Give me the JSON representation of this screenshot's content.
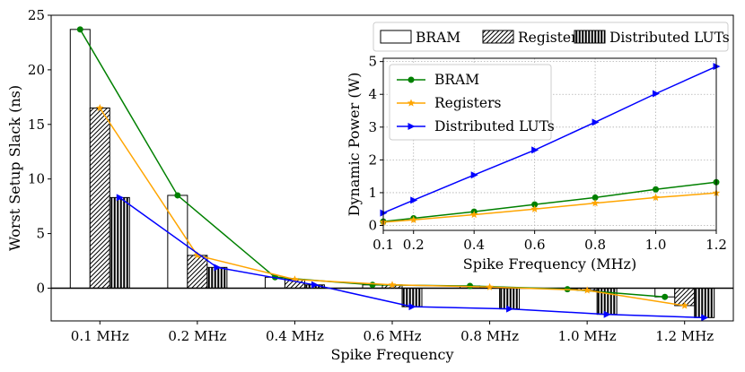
{
  "chart_data": [
    {
      "type": "bar",
      "title": "",
      "xlabel": "Spike Frequency",
      "ylabel": "Worst Setup Slack (ns)",
      "ylim": [
        -3,
        25
      ],
      "yticks": [
        0,
        5,
        10,
        15,
        20,
        25
      ],
      "categories": [
        "0.1 MHz",
        "0.2 MHz",
        "0.4 MHz",
        "0.6 MHz",
        "0.8 MHz",
        "1.0 MHz",
        "1.2 MHz"
      ],
      "legend_position": "top-right",
      "series": [
        {
          "name": "BRAM",
          "values": [
            23.7,
            8.5,
            1.0,
            0.3,
            0.2,
            -0.1,
            -0.8
          ],
          "color": "#008000",
          "hatch": "none"
        },
        {
          "name": "Registers",
          "values": [
            16.5,
            3.0,
            0.8,
            0.3,
            0.1,
            -0.2,
            -1.6
          ],
          "color": "#FFA500",
          "hatch": "diagonal"
        },
        {
          "name": "Distributed LUTs",
          "values": [
            8.3,
            1.9,
            0.3,
            -1.7,
            -1.9,
            -2.4,
            -2.7
          ],
          "color": "#0000FF",
          "hatch": "vertical"
        }
      ]
    },
    {
      "type": "line",
      "title": "",
      "xlabel": "Spike Frequency (MHz)",
      "ylabel": "Dynamic Power (W)",
      "x": [
        0.1,
        0.2,
        0.4,
        0.6,
        0.8,
        1.0,
        1.2
      ],
      "xticks": [
        0.1,
        0.2,
        0.4,
        0.6,
        0.8,
        1.0,
        1.2
      ],
      "xtick_labels": [
        "0.1",
        "0.2",
        "0.4",
        "0.6",
        "0.8",
        "1.0",
        "1.2"
      ],
      "yticks": [
        0,
        1,
        2,
        3,
        4,
        5
      ],
      "xlim": [
        0.1,
        1.2
      ],
      "ylim": [
        -0.15,
        5.1
      ],
      "grid": true,
      "legend_position": "top-left",
      "series": [
        {
          "name": "BRAM",
          "values": [
            0.12,
            0.22,
            0.42,
            0.64,
            0.85,
            1.1,
            1.32
          ],
          "color": "#008000",
          "marker": "circle"
        },
        {
          "name": "Registers",
          "values": [
            0.1,
            0.17,
            0.33,
            0.5,
            0.68,
            0.85,
            0.99
          ],
          "color": "#FFA500",
          "marker": "star"
        },
        {
          "name": "Distributed LUTs",
          "values": [
            0.38,
            0.77,
            1.54,
            2.3,
            3.15,
            4.02,
            4.85
          ],
          "color": "#0000FF",
          "marker": "triangle-right"
        }
      ]
    }
  ]
}
